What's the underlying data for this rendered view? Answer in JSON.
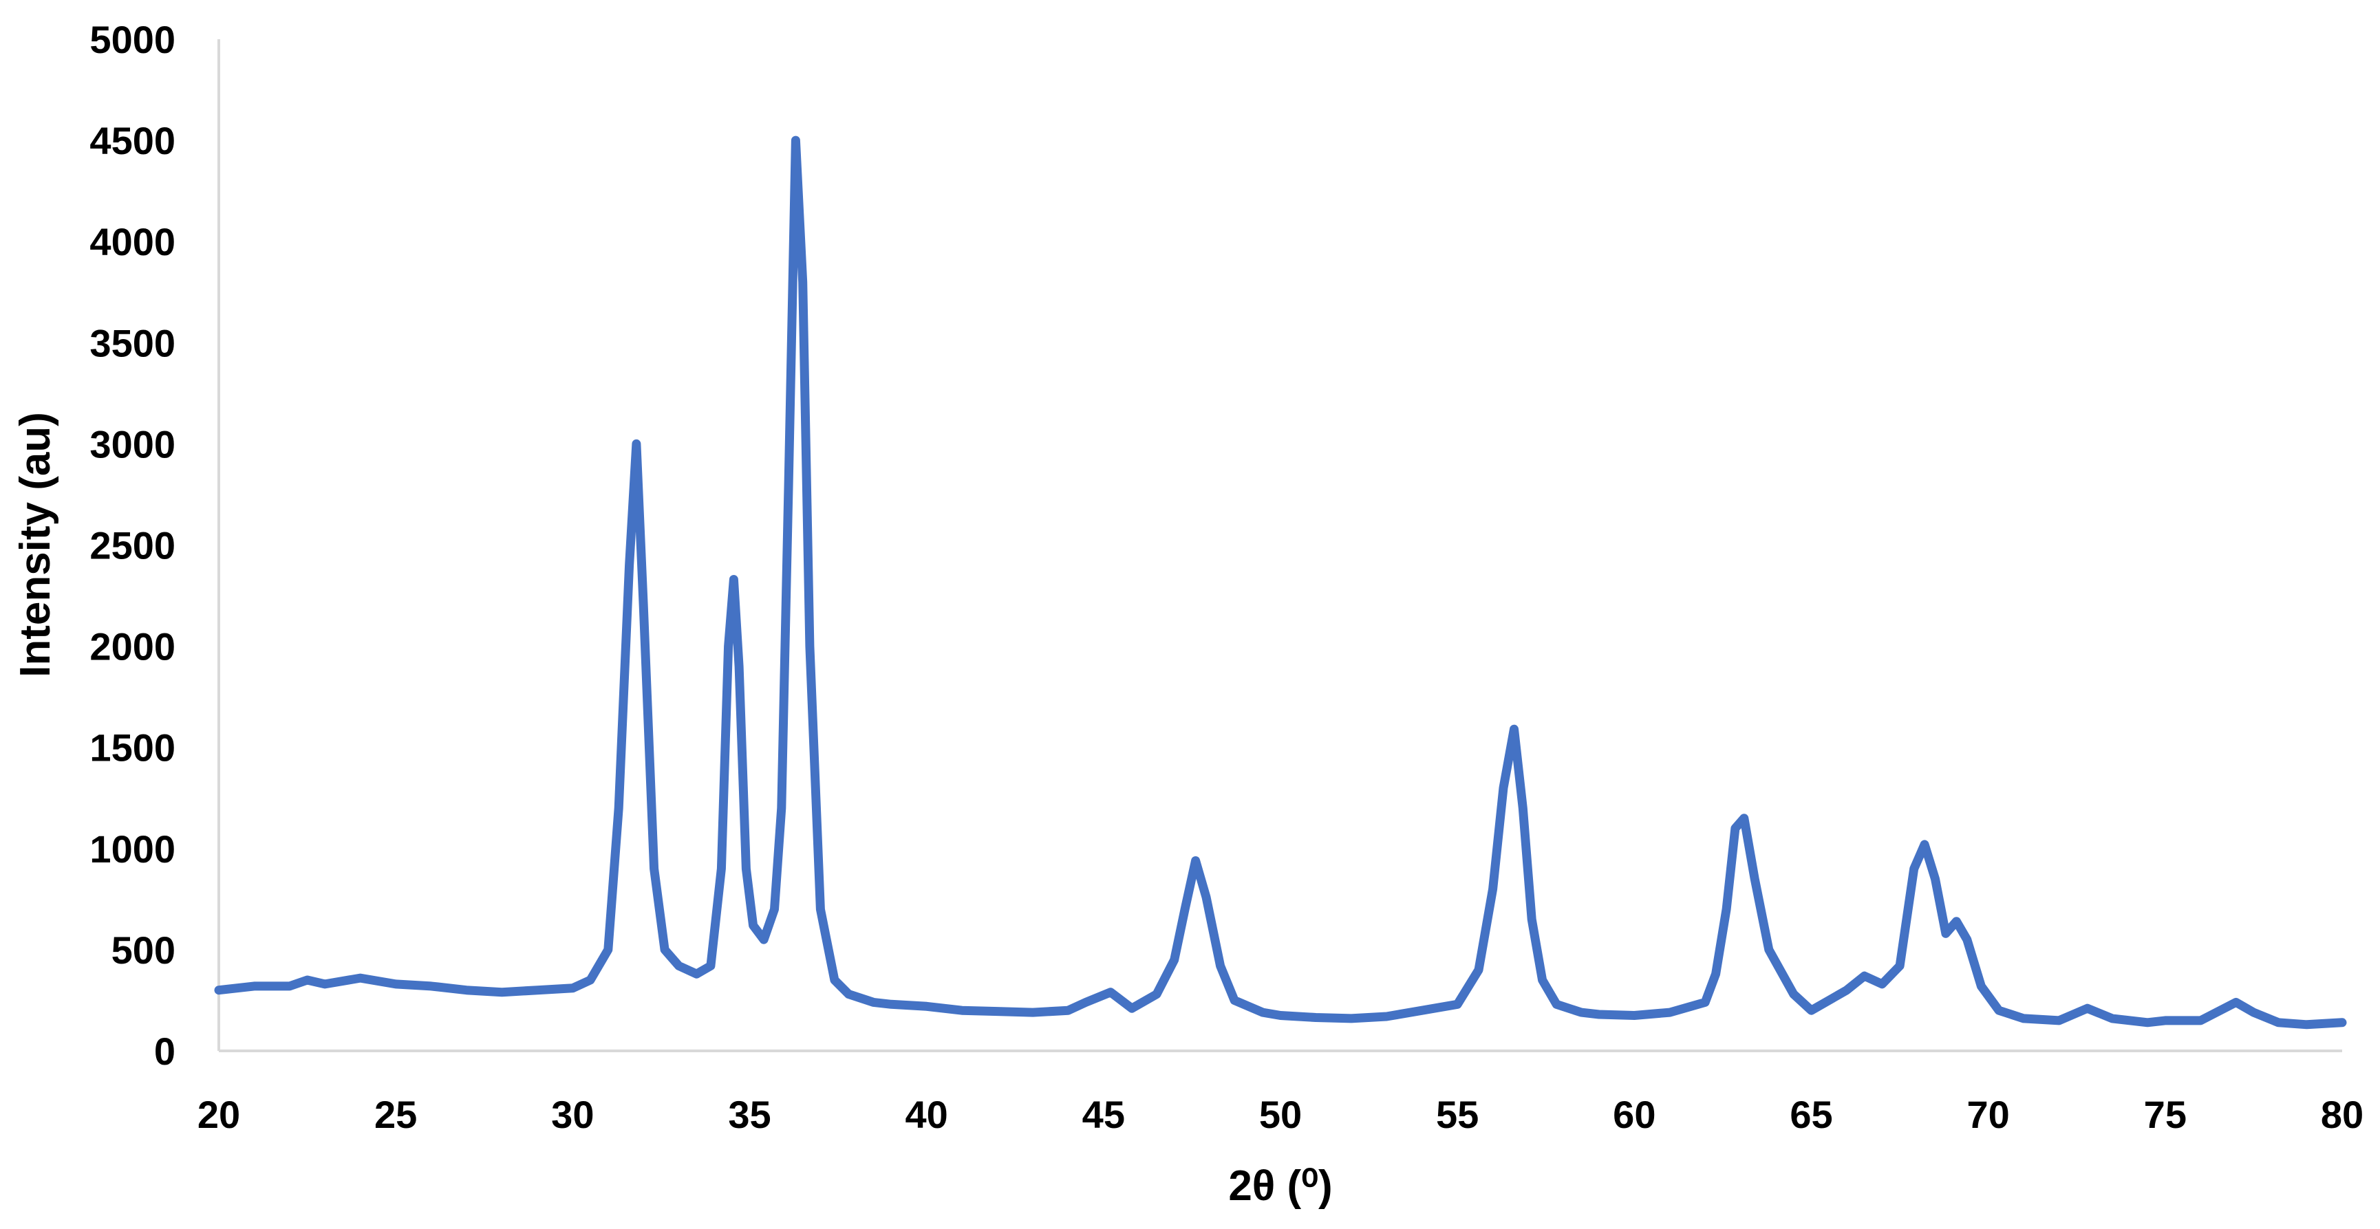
{
  "chart_data": {
    "type": "line",
    "title": "",
    "xlabel": "2θ (⁰)",
    "ylabel": "Intensity (au)",
    "xlim": [
      20,
      80
    ],
    "ylim": [
      0,
      5000
    ],
    "x_ticks": [
      "20",
      "25",
      "30",
      "35",
      "40",
      "45",
      "50",
      "55",
      "60",
      "65",
      "70",
      "75",
      "80"
    ],
    "y_ticks": [
      "0",
      "500",
      "1000",
      "1500",
      "2000",
      "2500",
      "3000",
      "3500",
      "4000",
      "4500",
      "5000"
    ],
    "grid": false,
    "legend": "none",
    "series_color": "#4472C4",
    "series": [
      {
        "x": [
          20,
          21,
          22,
          22.5,
          23,
          24,
          25,
          26,
          27,
          28,
          29,
          30,
          30.5,
          31,
          31.3,
          31.6,
          31.8,
          32.0,
          32.3,
          32.6,
          33,
          33.5,
          33.9,
          34.2,
          34.4,
          34.55,
          34.7,
          34.9,
          35.1,
          35.4,
          35.7,
          35.9,
          36.1,
          36.3,
          36.5,
          36.7,
          37.0,
          37.4,
          37.8,
          38.5,
          39,
          40,
          41,
          42,
          43,
          44,
          44.5,
          45.2,
          45.8,
          46.5,
          47.0,
          47.3,
          47.6,
          47.9,
          48.3,
          48.7,
          49.5,
          50,
          51,
          52,
          53,
          54,
          55,
          55.6,
          56.0,
          56.3,
          56.6,
          56.85,
          57.1,
          57.4,
          57.8,
          58.5,
          59,
          60,
          61,
          62,
          62.3,
          62.6,
          62.85,
          63.1,
          63.4,
          63.8,
          64.5,
          65,
          65.5,
          66,
          66.5,
          67,
          67.5,
          67.9,
          68.2,
          68.5,
          68.8,
          69.1,
          69.4,
          69.8,
          70.3,
          71,
          72,
          72.8,
          73.5,
          74.5,
          75,
          76,
          77,
          77.5,
          78.2,
          79,
          80
        ],
        "y": [
          300,
          320,
          320,
          350,
          330,
          360,
          330,
          320,
          300,
          290,
          300,
          310,
          350,
          500,
          1200,
          2400,
          3000,
          2200,
          900,
          500,
          420,
          380,
          420,
          900,
          2000,
          2330,
          1900,
          900,
          620,
          550,
          700,
          1200,
          2800,
          4500,
          3800,
          2000,
          700,
          350,
          280,
          240,
          230,
          220,
          200,
          195,
          190,
          200,
          240,
          290,
          210,
          280,
          450,
          700,
          940,
          760,
          420,
          250,
          190,
          175,
          165,
          160,
          170,
          200,
          230,
          400,
          800,
          1300,
          1590,
          1200,
          650,
          350,
          230,
          190,
          180,
          175,
          190,
          240,
          380,
          700,
          1100,
          1150,
          850,
          500,
          280,
          200,
          250,
          300,
          370,
          330,
          420,
          900,
          1020,
          850,
          580,
          640,
          550,
          320,
          200,
          160,
          150,
          210,
          160,
          140,
          150,
          150,
          240,
          190,
          140,
          130,
          140
        ]
      }
    ]
  }
}
